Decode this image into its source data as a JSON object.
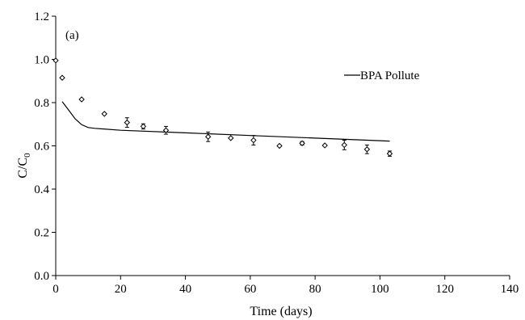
{
  "chart_data": {
    "type": "scatter",
    "panel_label": "(a)",
    "xlabel": "Time (days)",
    "ylabel_main": "C/C",
    "ylabel_sub": "0",
    "xlim": [
      0,
      140
    ],
    "ylim": [
      0,
      1.2
    ],
    "xticks": [
      0,
      20,
      40,
      60,
      80,
      100,
      120,
      140
    ],
    "yticks": [
      "0.0",
      "0.2",
      "0.4",
      "0.6",
      "0.8",
      "1.0",
      "1.2"
    ],
    "grid": false,
    "legend_position": "top-right",
    "series": [
      {
        "kind": "line",
        "name": "BPA Pollute",
        "x": [
          2,
          4,
          6,
          8,
          10,
          12,
          20,
          40,
          60,
          80,
          103
        ],
        "y": [
          0.805,
          0.765,
          0.725,
          0.698,
          0.685,
          0.681,
          0.672,
          0.66,
          0.648,
          0.636,
          0.622
        ]
      },
      {
        "kind": "points",
        "marker": "diamond",
        "x": [
          0,
          2,
          8,
          15,
          22,
          27,
          34,
          47,
          54,
          61,
          69,
          76,
          83,
          89,
          96,
          103
        ],
        "y": [
          0.995,
          0.915,
          0.815,
          0.748,
          0.708,
          0.69,
          0.672,
          0.642,
          0.636,
          0.626,
          0.6,
          0.612,
          0.602,
          0.604,
          0.584,
          0.564
        ],
        "err": [
          0,
          0,
          0,
          0,
          0.022,
          0.012,
          0.018,
          0.022,
          0,
          0.022,
          0,
          0.008,
          0,
          0.022,
          0.02,
          0.012
        ]
      }
    ]
  }
}
